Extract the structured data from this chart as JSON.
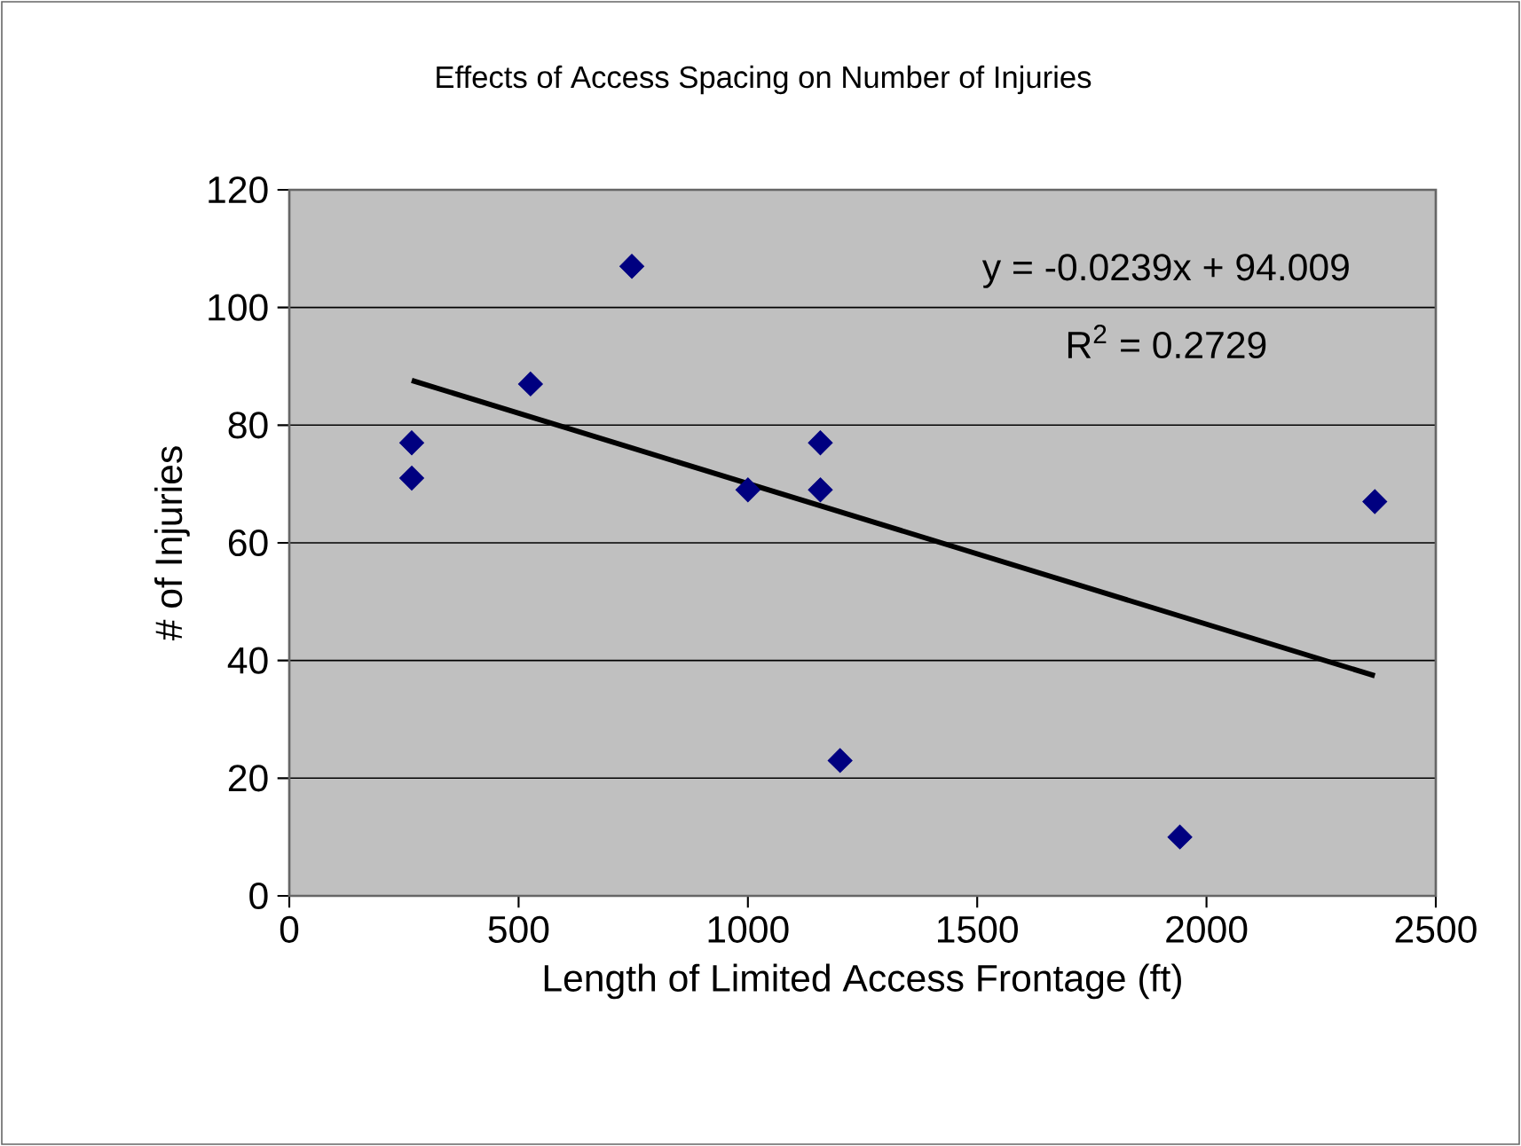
{
  "chart_data": {
    "type": "scatter",
    "title": "Effects of Access Spacing on Number of Injuries",
    "xlabel": "Length of Limited Access Frontage (ft)",
    "ylabel": "# of Injuries",
    "series": [
      {
        "color": "#000080",
        "marker": "diamond",
        "x": [
          267,
          267,
          526,
          747,
          1000,
          1158,
          1158,
          1201,
          1942,
          2367
        ],
        "values": [
          77,
          71,
          87,
          107,
          69,
          77,
          69,
          23,
          10,
          67
        ]
      },
      {
        "type": "line",
        "color": "#000000",
        "marker": "none",
        "line_style": "solid",
        "x": [
          267,
          2367
        ],
        "values": [
          87.6,
          37.4
        ]
      }
    ],
    "annotations": [
      "y = -0.0239x + 94.009",
      "R$^{2}$ = 0.2729"
    ],
    "xlim": [
      0,
      2500
    ],
    "xticks": [
      0,
      500,
      1000,
      1500,
      2000,
      2500
    ],
    "ylim": [
      0,
      120
    ],
    "yticks": [
      0,
      20,
      40,
      60,
      80,
      100,
      120
    ],
    "grid": "y"
  }
}
